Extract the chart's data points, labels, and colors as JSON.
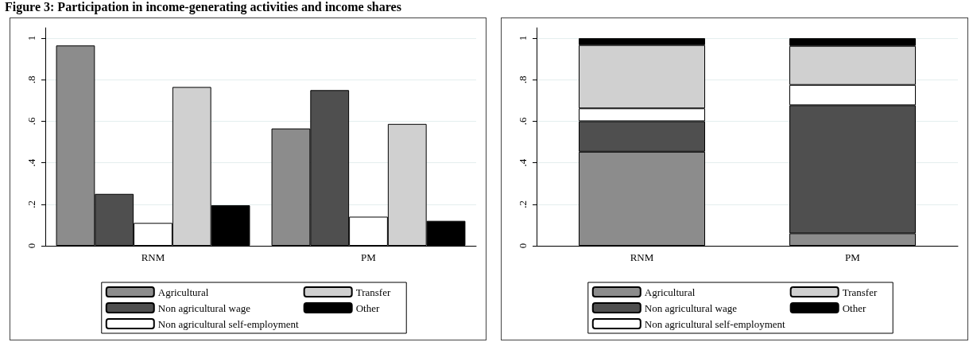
{
  "chart_data": [
    {
      "type": "bar",
      "title": "Figure 3: Participation in income-generating activities and income shares",
      "categories": [
        "RNM",
        "PM"
      ],
      "series": [
        {
          "name": "Agricultural",
          "color": "#8c8c8c",
          "values": [
            0.965,
            0.565
          ]
        },
        {
          "name": "Non agricultural wage",
          "color": "#4f4f4f",
          "values": [
            0.25,
            0.75
          ]
        },
        {
          "name": "Non agricultural self-employment",
          "color": "#ffffff",
          "values": [
            0.11,
            0.14
          ]
        },
        {
          "name": "Transfer",
          "color": "#d0d0d0",
          "values": [
            0.765,
            0.587
          ]
        },
        {
          "name": "Other",
          "color": "#000000",
          "values": [
            0.195,
            0.12
          ]
        }
      ],
      "ylim": [
        0,
        1.05
      ],
      "yticks": [
        {
          "value": 0,
          "label": "0"
        },
        {
          "value": 0.2,
          "label": ".2"
        },
        {
          "value": 0.4,
          "label": ".4"
        },
        {
          "value": 0.6,
          "label": ".6"
        },
        {
          "value": 0.8,
          "label": ".8"
        },
        {
          "value": 1,
          "label": "1"
        }
      ],
      "grid": true,
      "legend": "bottom"
    },
    {
      "type": "bar",
      "stacked": true,
      "categories": [
        "RNM",
        "PM"
      ],
      "series": [
        {
          "name": "Agricultural",
          "color": "#8c8c8c",
          "values": [
            0.453,
            0.06
          ]
        },
        {
          "name": "Non agricultural wage",
          "color": "#4f4f4f",
          "values": [
            0.147,
            0.617
          ]
        },
        {
          "name": "Non agricultural self-employment",
          "color": "#ffffff",
          "values": [
            0.062,
            0.098
          ]
        },
        {
          "name": "Transfer",
          "color": "#d0d0d0",
          "values": [
            0.305,
            0.188
          ]
        },
        {
          "name": "Other",
          "color": "#000000",
          "values": [
            0.033,
            0.037
          ]
        }
      ],
      "ylim": [
        0,
        1.05
      ],
      "yticks": [
        {
          "value": 0,
          "label": "0"
        },
        {
          "value": 0.2,
          "label": ".2"
        },
        {
          "value": 0.4,
          "label": ".4"
        },
        {
          "value": 0.6,
          "label": ".6"
        },
        {
          "value": 0.8,
          "label": ".8"
        },
        {
          "value": 1,
          "label": "1"
        }
      ],
      "grid": true,
      "legend": "bottom"
    }
  ]
}
